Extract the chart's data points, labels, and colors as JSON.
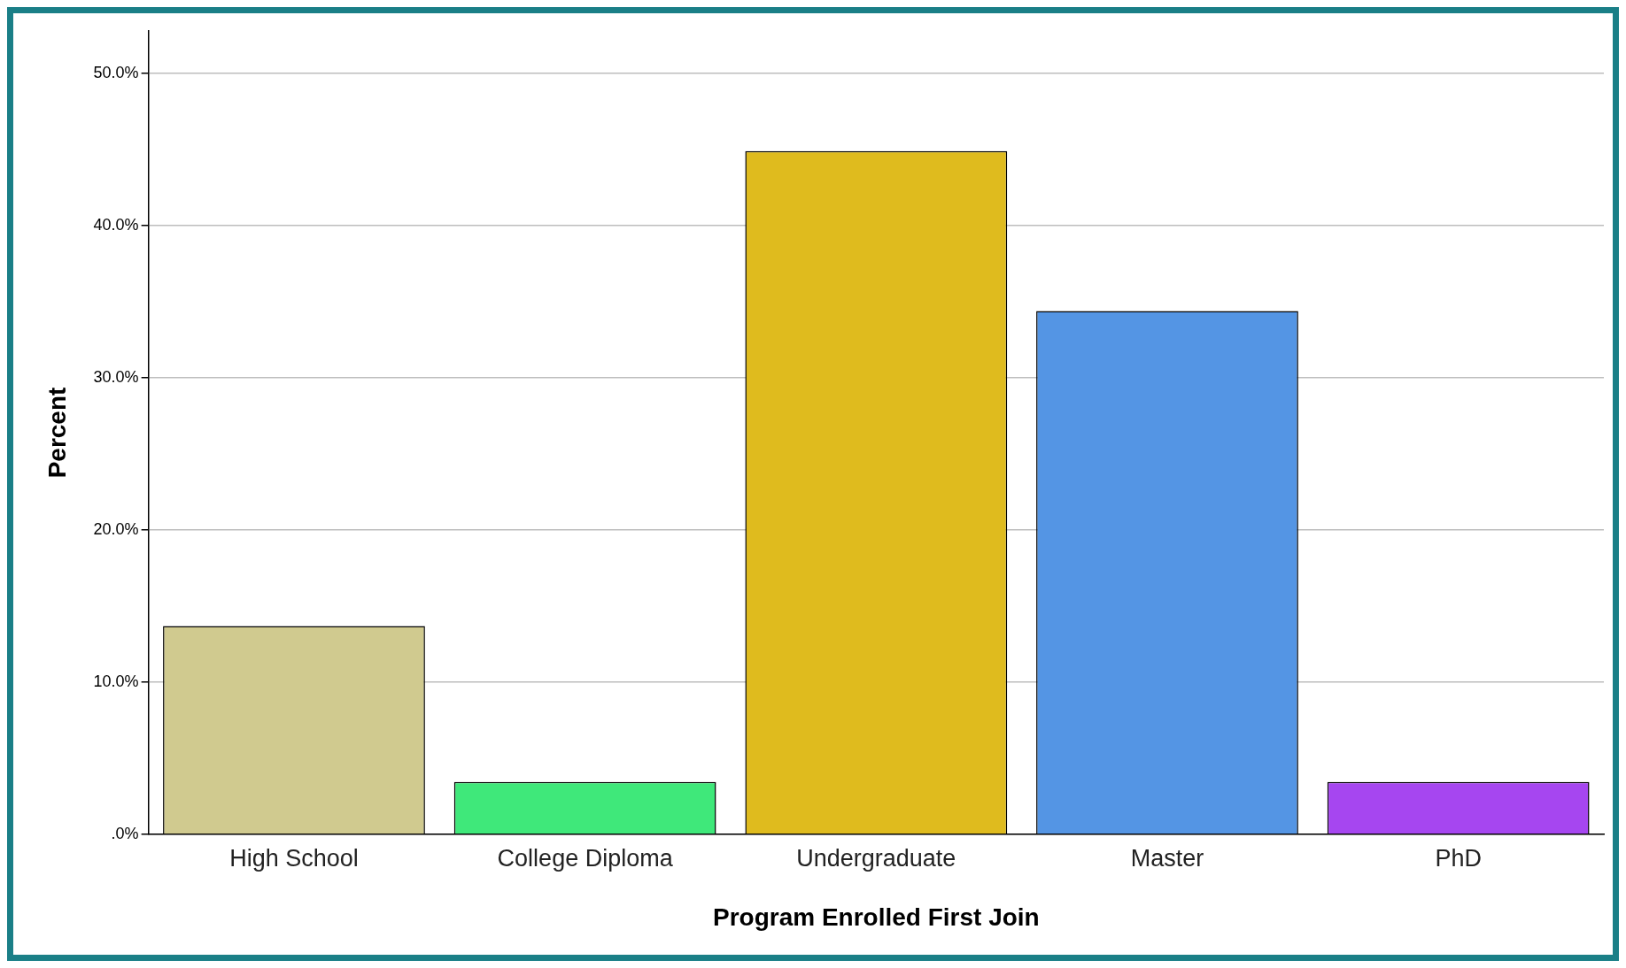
{
  "chart_data": {
    "type": "bar",
    "xlabel": "Program Enrolled First Join",
    "ylabel": "Percent",
    "categories": [
      "High School",
      "College Diploma",
      "Undergraduate",
      "Master",
      "PhD"
    ],
    "values": [
      13.7,
      3.45,
      44.9,
      34.4,
      3.45
    ],
    "colors": [
      "#d0ca8f",
      "#3fe87a",
      "#dfbb1e",
      "#5495e4",
      "#a646f0"
    ],
    "ylim": [
      0,
      52.8
    ],
    "yticks": [
      {
        "value": 0,
        "label": ".0%"
      },
      {
        "value": 10,
        "label": "10.0%"
      },
      {
        "value": 20,
        "label": "20.0%"
      },
      {
        "value": 30,
        "label": "30.0%"
      },
      {
        "value": 40,
        "label": "40.0%"
      },
      {
        "value": 50,
        "label": "50.0%"
      }
    ],
    "grid": "y",
    "legend": false
  }
}
